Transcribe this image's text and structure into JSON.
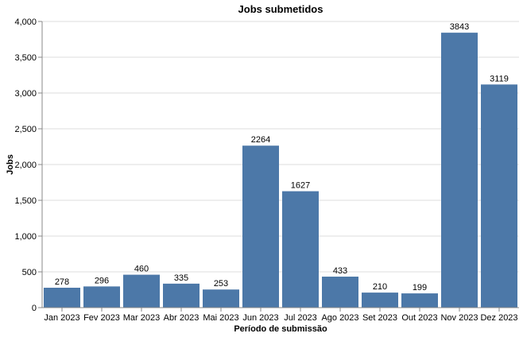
{
  "chart_data": {
    "type": "bar",
    "title": "Jobs submetidos",
    "xlabel": "Período de submissão",
    "ylabel": "Jobs",
    "categories": [
      "Jan 2023",
      "Fev 2023",
      "Mar 2023",
      "Abr 2023",
      "Mai 2023",
      "Jun 2023",
      "Jul 2023",
      "Ago 2023",
      "Set 2023",
      "Out 2023",
      "Nov 2023",
      "Dez 2023"
    ],
    "values": [
      278,
      296,
      460,
      335,
      253,
      2264,
      1627,
      433,
      210,
      199,
      3843,
      3119
    ],
    "data_labels": [
      "278",
      "296",
      "460",
      "335",
      "253",
      "2264",
      "1627",
      "433",
      "210",
      "199",
      "3843",
      "3119"
    ],
    "ylim": [
      0,
      4000
    ],
    "yticks": [
      0,
      500,
      1000,
      1500,
      2000,
      2500,
      3000,
      3500,
      4000
    ],
    "ytick_labels": [
      "0",
      "500",
      "1,000",
      "1,500",
      "2,000",
      "2,500",
      "3,000",
      "3,500",
      "4,000"
    ],
    "grid": true,
    "bar_color": "#4c78a8"
  }
}
